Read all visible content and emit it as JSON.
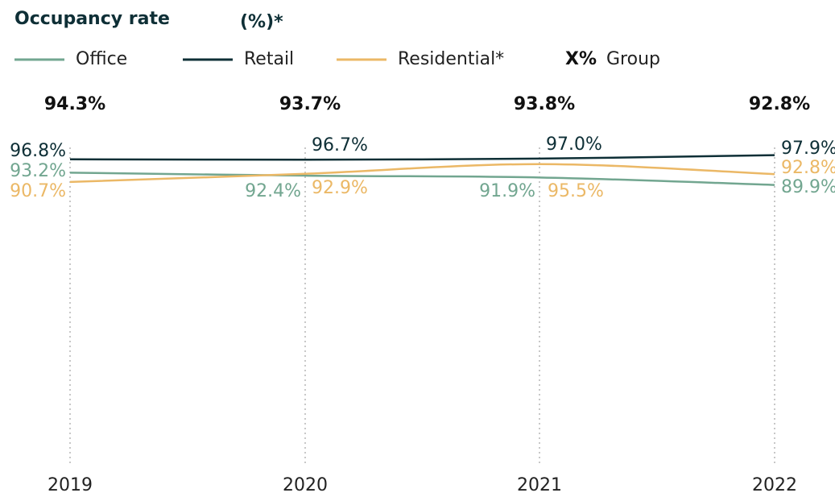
{
  "chart_data": {
    "type": "line",
    "title": "Occupancy rate",
    "subtitle": "(%)*",
    "categories": [
      "2019",
      "2020",
      "2021",
      "2022"
    ],
    "series": [
      {
        "name": "Office",
        "color": "#72a690",
        "values": [
          93.2,
          92.4,
          91.9,
          89.9
        ],
        "value_labels": [
          "93.2%",
          "92.4%",
          "91.9%",
          "89.9%"
        ]
      },
      {
        "name": "Retail",
        "color": "#0e2f36",
        "values": [
          96.8,
          96.7,
          97.0,
          97.9
        ],
        "value_labels": [
          "96.8%",
          "96.7%",
          "97.0%",
          "97.9%"
        ]
      },
      {
        "name": "Residential*",
        "color": "#ebb866",
        "values": [
          90.7,
          92.9,
          95.5,
          92.8
        ],
        "value_labels": [
          "90.7%",
          "92.9%",
          "95.5%",
          "92.8%"
        ]
      }
    ],
    "group_marker": "X%",
    "group_name": "Group",
    "group_values": [
      94.3,
      93.7,
      93.8,
      92.8
    ],
    "group_value_labels": [
      "94.3%",
      "93.7%",
      "93.8%",
      "92.8%"
    ],
    "ylim": [
      15,
      100
    ]
  }
}
